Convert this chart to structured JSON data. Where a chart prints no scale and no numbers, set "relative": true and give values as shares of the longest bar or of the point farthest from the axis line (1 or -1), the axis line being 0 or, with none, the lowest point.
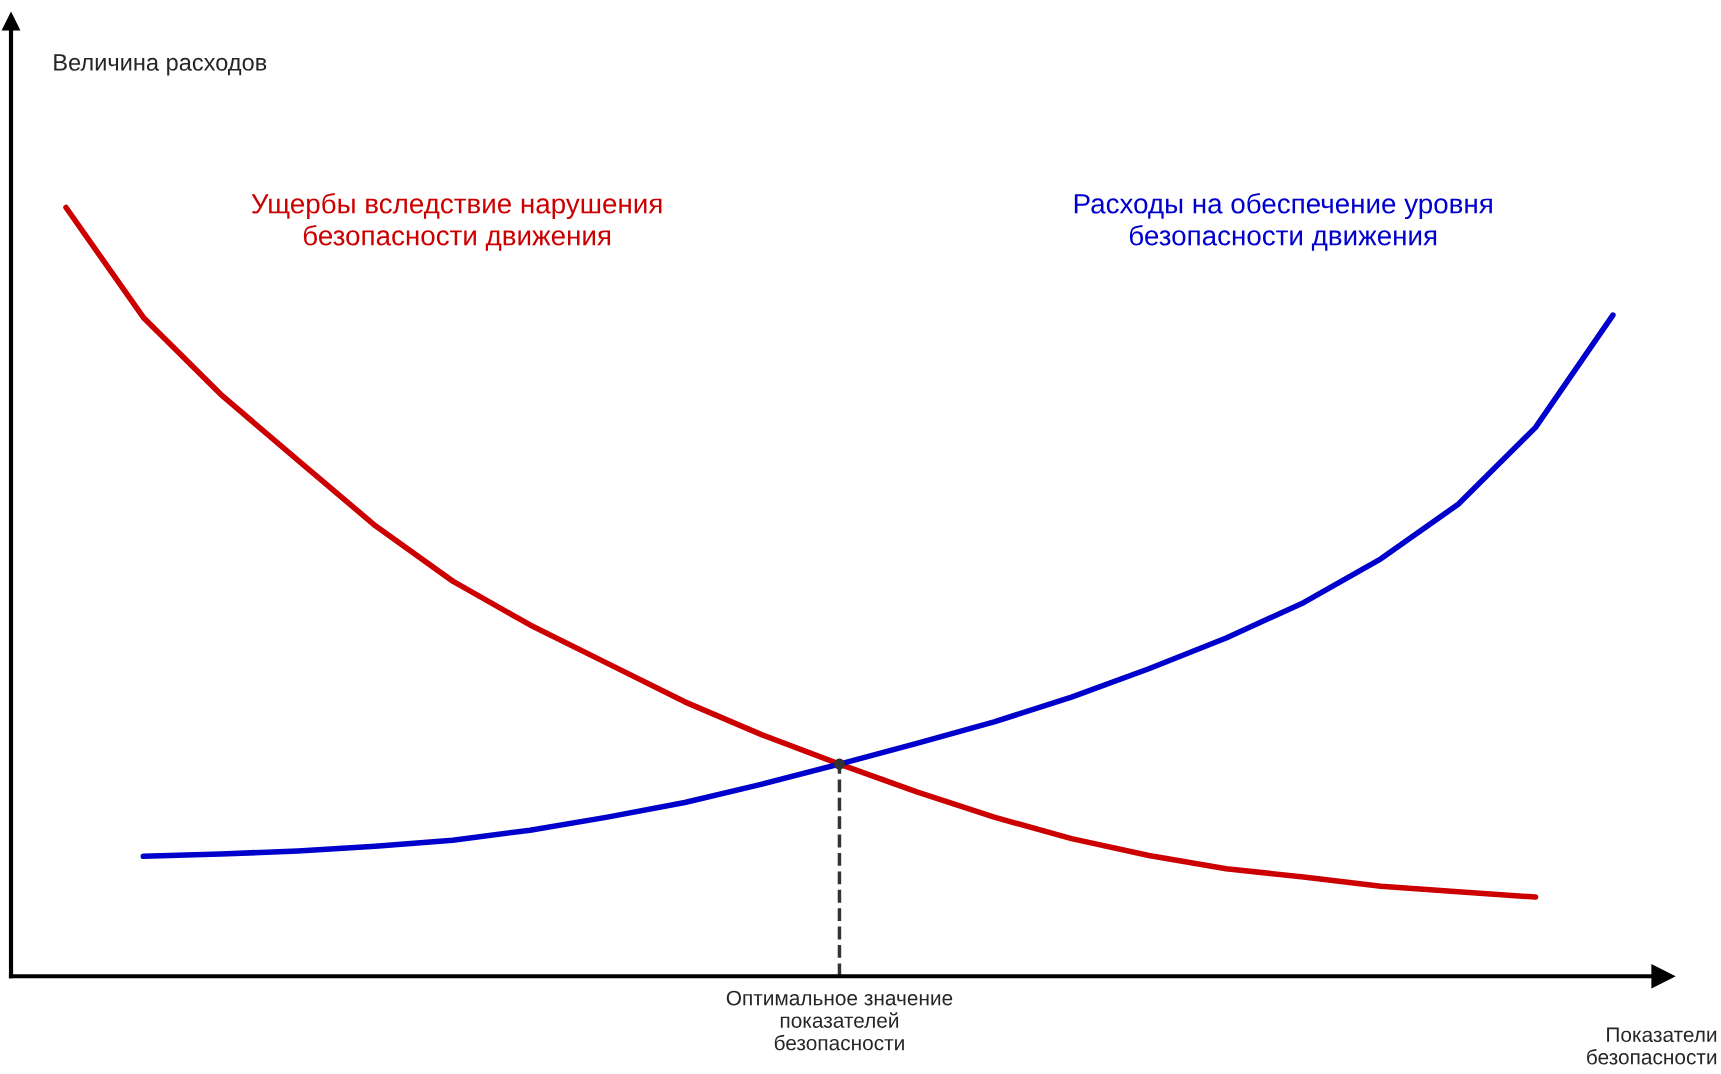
{
  "chart_data": {
    "type": "line",
    "relative": true,
    "xlabel": "Показатели\nбезопасности",
    "categories": [
      null,
      null,
      null,
      null,
      null,
      null,
      null,
      null,
      null,
      null,
      null,
      null,
      null,
      null,
      null,
      null,
      null,
      null,
      null,
      null,
      null
    ],
    "series": [
      {
        "name": "Ущербы вследствие нарушения\nбезопасности движения",
        "color": "#cc0000",
        "values": [
          1.0,
          0.857,
          0.757,
          0.671,
          0.586,
          0.514,
          0.457,
          0.407,
          0.357,
          0.314,
          0.276,
          0.24,
          0.207,
          0.179,
          0.157,
          0.14,
          0.129,
          0.117,
          0.11,
          0.103,
          null
        ]
      },
      {
        "name": "Расходы на обеспечение уровня\nбезопасности движения",
        "color": "#0000cc",
        "values": [
          null,
          0.156,
          0.159,
          0.163,
          0.169,
          0.177,
          0.19,
          0.207,
          0.226,
          0.25,
          0.276,
          0.303,
          0.331,
          0.363,
          0.4,
          0.44,
          0.486,
          0.543,
          0.614,
          0.714,
          0.86
        ]
      }
    ],
    "annotations": [
      "Оптимальное значение\nпоказателей\nбезопасности",
      "Величина расходов"
    ],
    "legend": false,
    "marker": "none",
    "line_style": "solid"
  }
}
